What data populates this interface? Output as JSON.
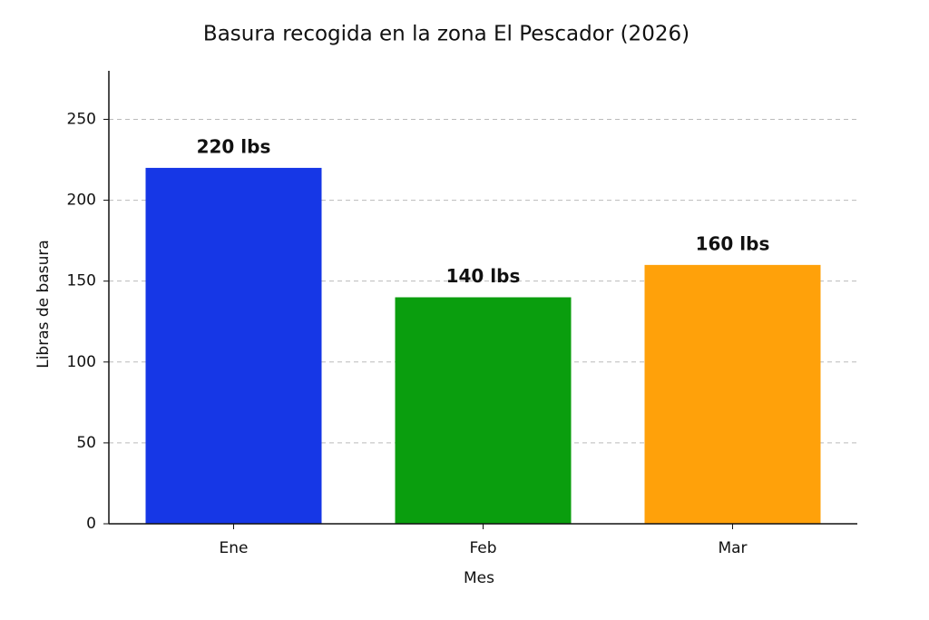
{
  "chart_data": {
    "type": "bar",
    "title": "Basura recogida en la zona El Pescador (2026)",
    "x_label": "Mes",
    "y_label": "Libras de basura",
    "categories": [
      "Ene",
      "Feb",
      "Mar"
    ],
    "values": [
      220,
      140,
      160
    ],
    "value_labels": [
      "220 lbs",
      "140 lbs",
      "160 lbs"
    ],
    "colors": [
      "#1637e6",
      "#0a9e0e",
      "#ffa10a"
    ],
    "ylim": [
      0,
      280
    ],
    "yticks": [
      0,
      50,
      100,
      150,
      200,
      250
    ],
    "grid": true
  }
}
